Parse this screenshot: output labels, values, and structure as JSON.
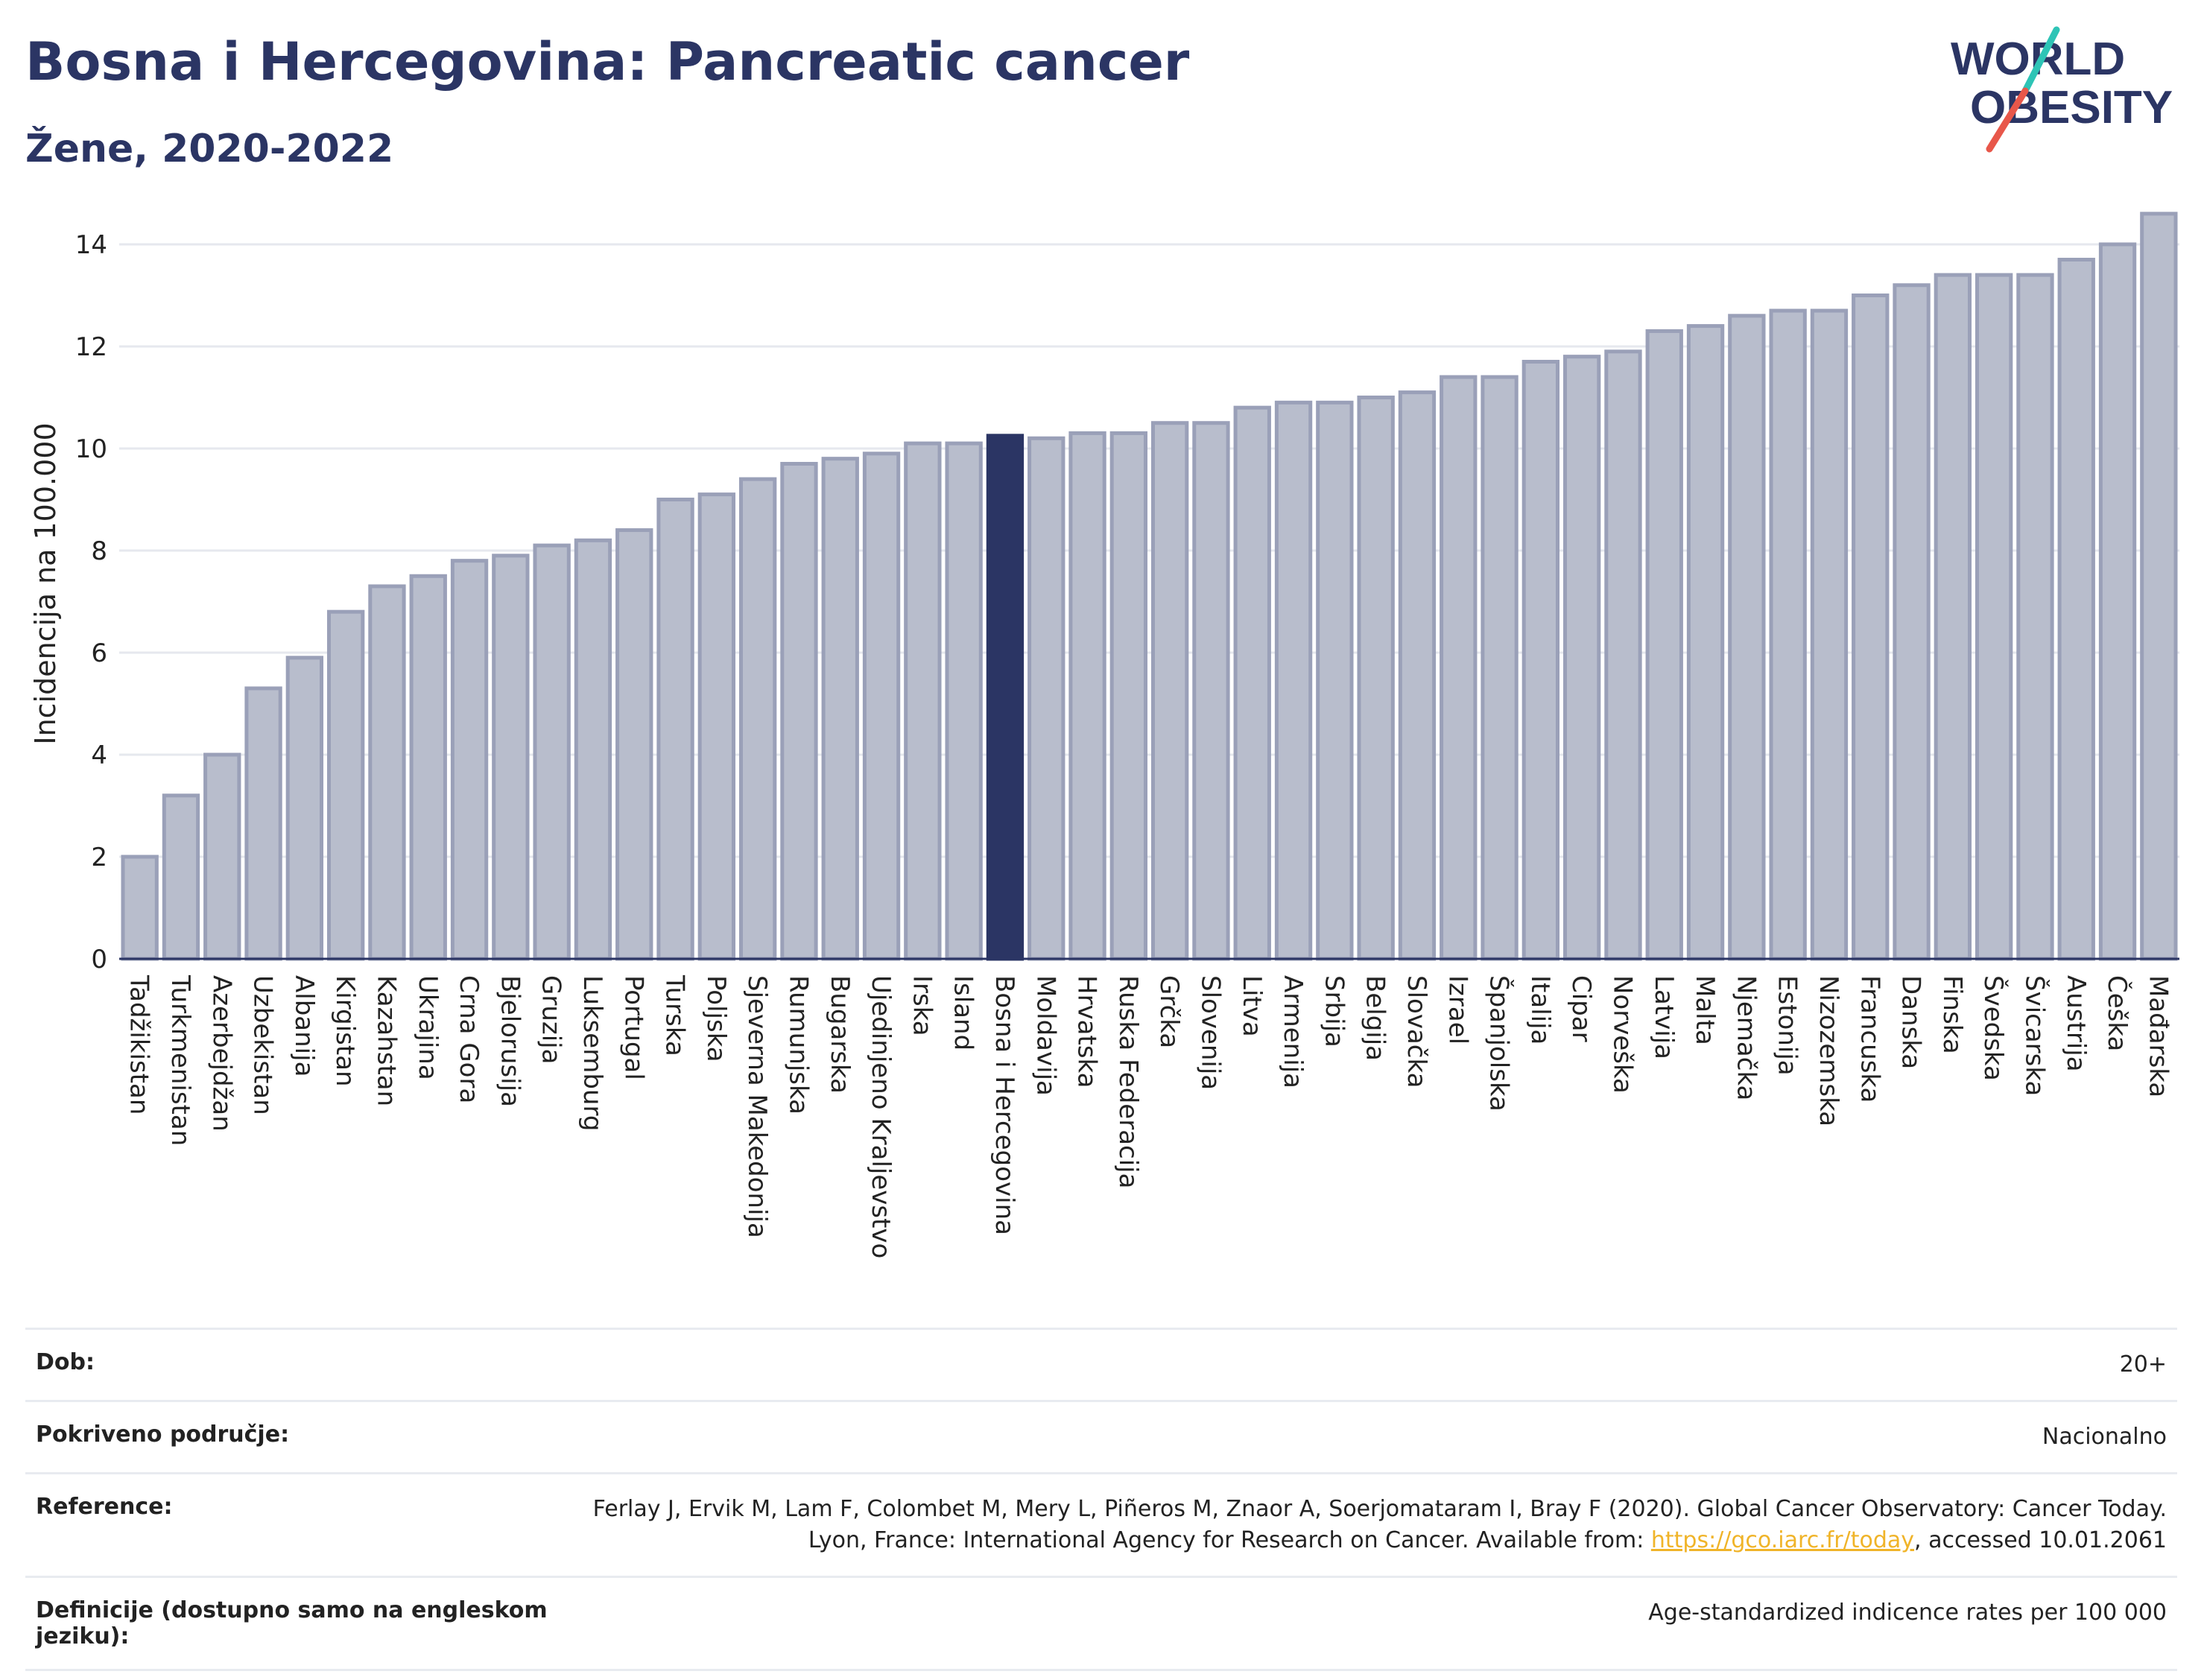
{
  "header": {
    "title": "Bosna i Hercegovina: Pancreatic cancer",
    "subtitle": "Žene, 2020-2022"
  },
  "logo": {
    "line1": "WORLD",
    "line2": "OBESITY"
  },
  "colors": {
    "bar": "#b8bdcc",
    "bar_border": "#9aa0b8",
    "highlight": "#2b3564",
    "title": "#2b3564",
    "logo_slash_teal": "#2ec4b6",
    "logo_slash_red": "#e8574a",
    "link": "#f0b429"
  },
  "chart_data": {
    "type": "bar",
    "title": "Bosna i Hercegovina: Pancreatic cancer",
    "subtitle": "Žene, 2020-2022",
    "xlabel": "",
    "ylabel": "Incidencija na 100.000",
    "ylim": [
      0,
      14.7
    ],
    "yticks": [
      0,
      2,
      4,
      6,
      8,
      10,
      12,
      14
    ],
    "grid": true,
    "highlight": "Bosna i Hercegovina",
    "categories": [
      "Tadžikistan",
      "Turkmenistan",
      "Azerbejdžan",
      "Uzbekistan",
      "Albanija",
      "Kirgistan",
      "Kazahstan",
      "Ukrajina",
      "Crna Gora",
      "Bjelorusija",
      "Gruzija",
      "Luksemburg",
      "Portugal",
      "Turska",
      "Poljska",
      "Sjeverna Makedonija",
      "Rumunjska",
      "Bugarska",
      "Ujedinjeno Kraljevstvo",
      "Irska",
      "Island",
      "Bosna i Hercegovina",
      "Moldavija",
      "Hrvatska",
      "Ruska Federacija",
      "Grčka",
      "Slovenija",
      "Litva",
      "Armenija",
      "Srbija",
      "Belgija",
      "Slovačka",
      "Izrael",
      "Španjolska",
      "Italija",
      "Cipar",
      "Norveška",
      "Latvija",
      "Malta",
      "Njemačka",
      "Estonija",
      "Nizozemska",
      "Francuska",
      "Danska",
      "Finska",
      "Švedska",
      "Švicarska",
      "Austrija",
      "Češka",
      "Mađarska"
    ],
    "values": [
      2.0,
      3.2,
      4.0,
      5.3,
      5.9,
      6.8,
      7.3,
      7.5,
      7.8,
      7.9,
      8.1,
      8.2,
      8.4,
      9.0,
      9.1,
      9.4,
      9.7,
      9.8,
      9.9,
      10.1,
      10.1,
      10.25,
      10.2,
      10.3,
      10.3,
      10.5,
      10.5,
      10.8,
      10.9,
      10.9,
      11.0,
      11.1,
      11.4,
      11.4,
      11.7,
      11.8,
      11.9,
      12.3,
      12.4,
      12.6,
      12.7,
      12.7,
      13.0,
      13.2,
      13.4,
      13.4,
      13.4,
      13.7,
      14.0,
      14.6
    ]
  },
  "footer": {
    "rows": [
      {
        "key": "Dob:",
        "value": "20+"
      },
      {
        "key": "Pokriveno područje:",
        "value": "Nacionalno"
      },
      {
        "key": "Reference:",
        "value_before": "Ferlay J, Ervik M, Lam F, Colombet M, Mery L, Piñeros M, Znaor A, Soerjomataram I, Bray F (2020). Global Cancer Observatory: Cancer Today. Lyon, France: International Agency for Research on Cancer. Available from: ",
        "link": "https://gco.iarc.fr/today",
        "value_after": ", accessed 10.01.2061"
      },
      {
        "key": "Definicije (dostupno samo na engleskom jeziku):",
        "value": "Age-standardized indicence rates per 100 000"
      }
    ]
  }
}
